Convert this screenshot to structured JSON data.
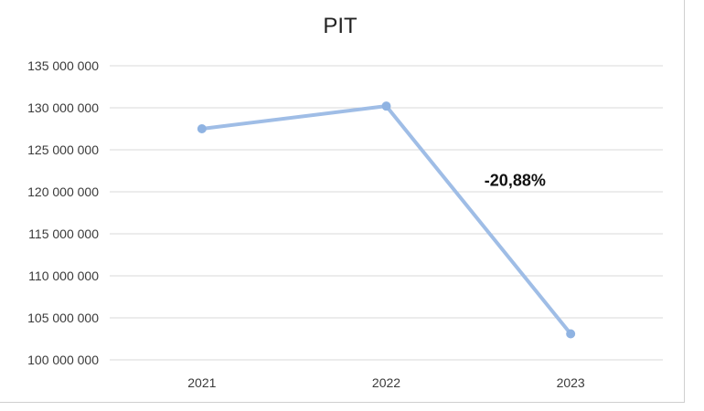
{
  "chart_data": {
    "type": "line",
    "title": "PIT",
    "xlabel": "",
    "ylabel": "",
    "categories": [
      "2021",
      "2022",
      "2023"
    ],
    "series": [
      {
        "values": [
          127500000,
          130200000,
          103100000
        ]
      }
    ],
    "ylim": [
      100000000,
      135000000
    ],
    "yticks": [
      100000000,
      105000000,
      110000000,
      115000000,
      120000000,
      125000000,
      130000000,
      135000000
    ],
    "ytick_labels": [
      "100 000 000",
      "105 000 000",
      "110 000 000",
      "115 000 000",
      "120 000 000",
      "125 000 000",
      "130 000 000",
      "135 000 000"
    ],
    "grid": true,
    "legend": "none",
    "annotations": [
      {
        "text": "-20,88%",
        "between": [
          "2022",
          "2023"
        ]
      }
    ],
    "colors": {
      "line": "#9fbde6",
      "marker": "#8fb3e2",
      "grid": "#d9d9d9"
    }
  }
}
